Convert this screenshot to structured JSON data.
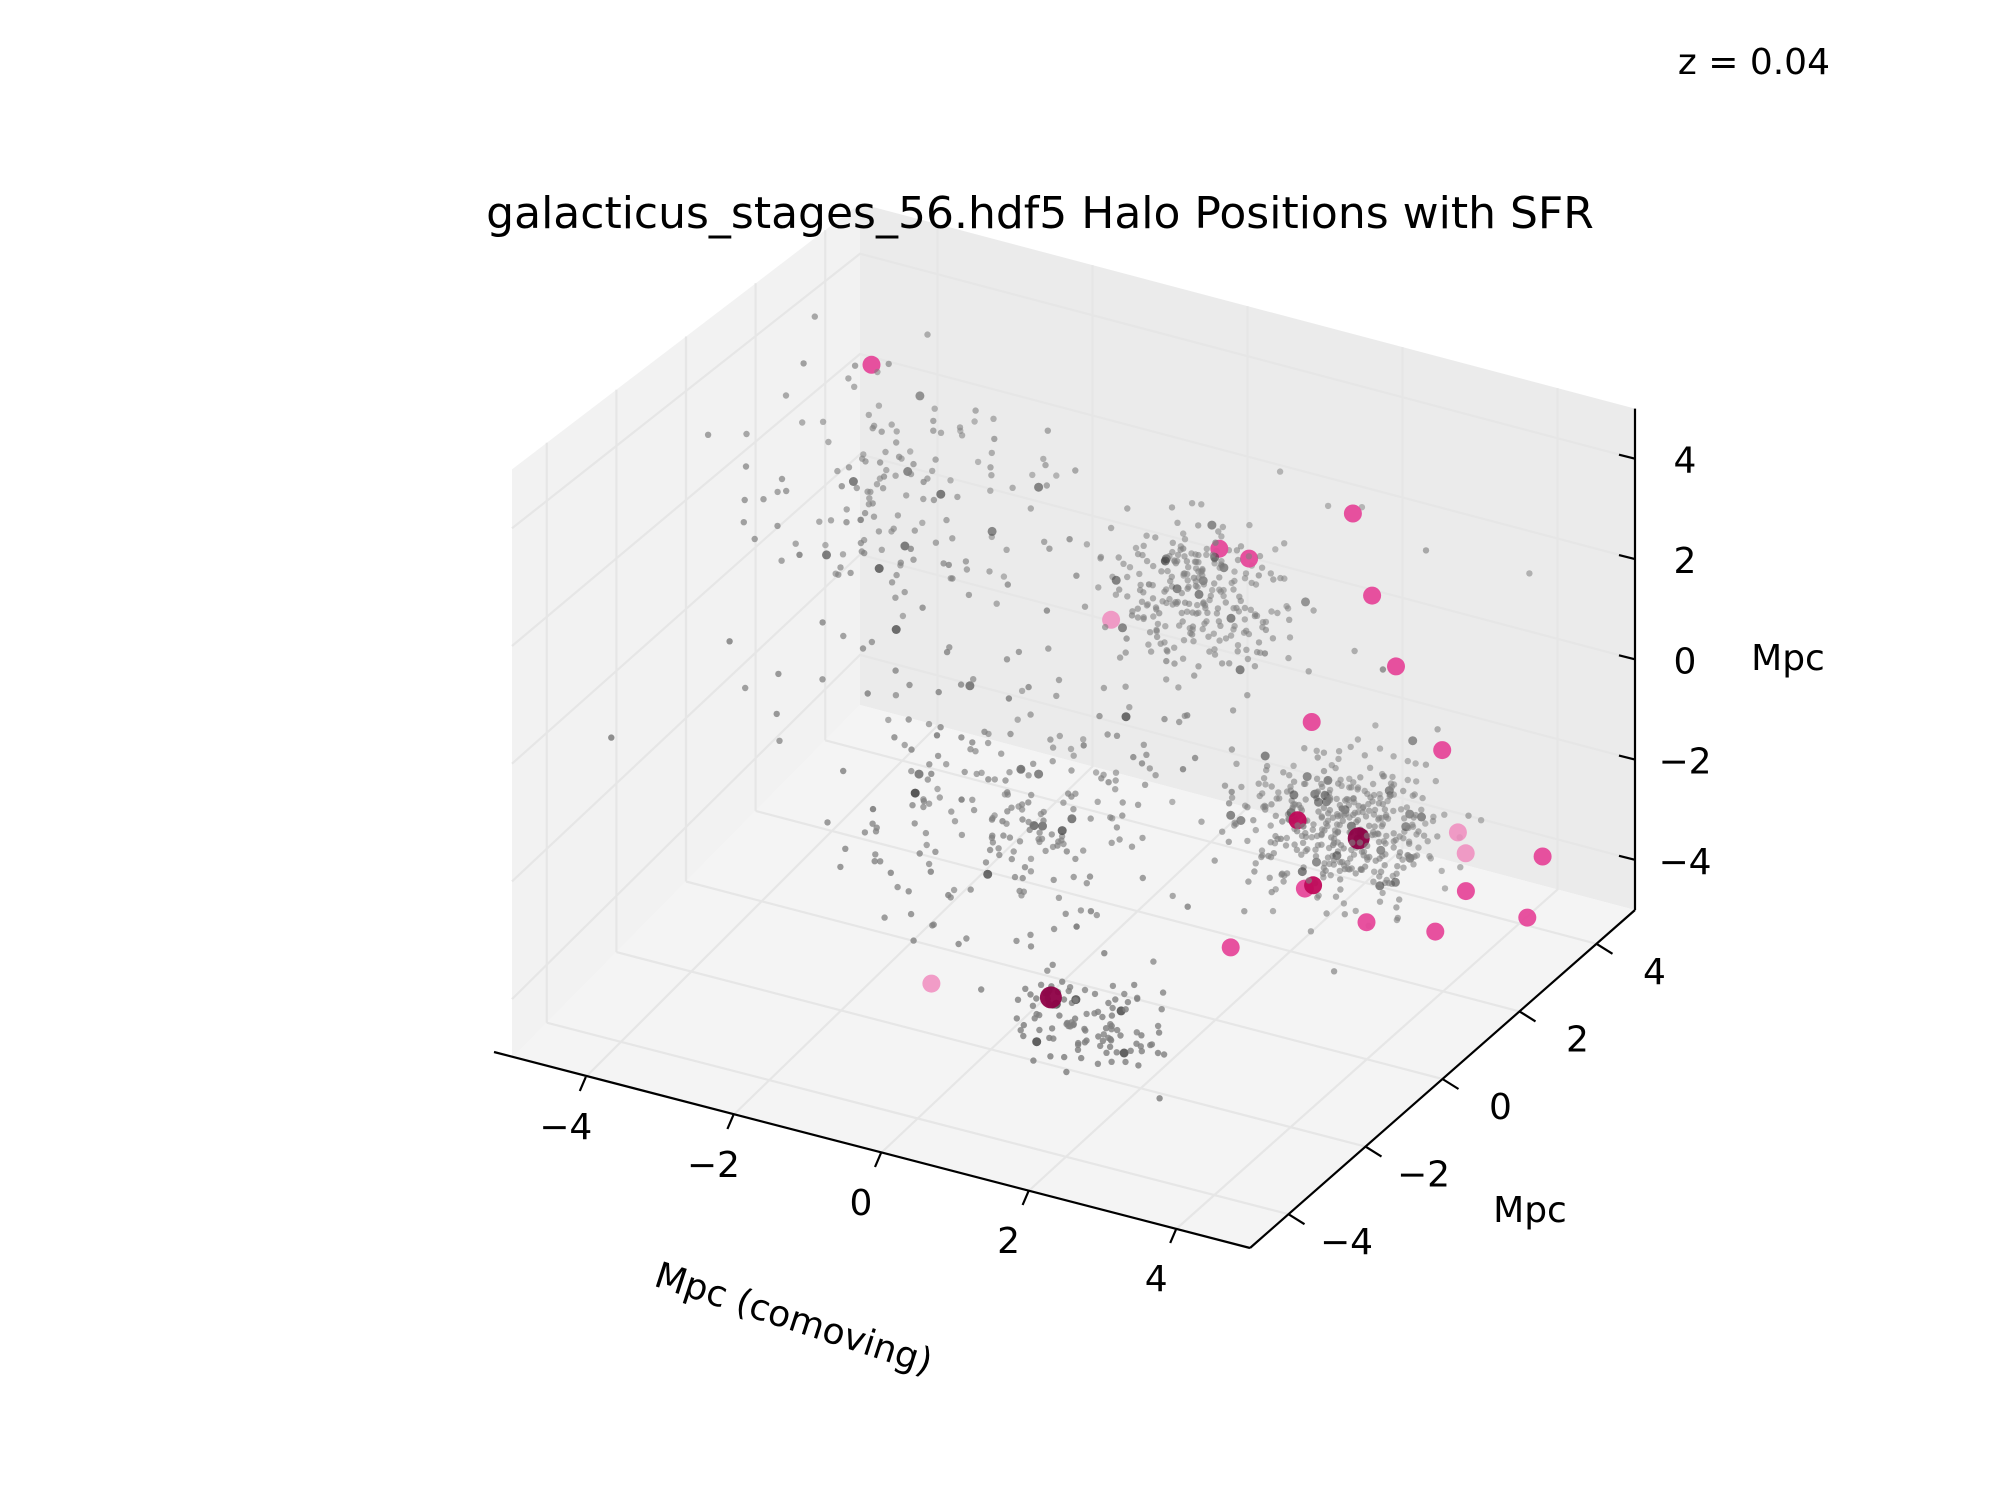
{
  "chart_data": {
    "type": "scatter",
    "title": "galacticus_stages_56.hdf5 Halo Positions with SFR",
    "annotation": "z = 0.04",
    "xlabel": "Mpc (comoving)",
    "ylabel": "Mpc",
    "zlabel": "Mpc",
    "xlim": [
      -5,
      5
    ],
    "ylim": [
      -5,
      5
    ],
    "zlim": [
      -5,
      5
    ],
    "xticks": [
      {
        "v": -4,
        "label": "−4"
      },
      {
        "v": -2,
        "label": "−2"
      },
      {
        "v": 0,
        "label": "0"
      },
      {
        "v": 2,
        "label": "2"
      },
      {
        "v": 4,
        "label": "4"
      }
    ],
    "yticks": [
      {
        "v": -4,
        "label": "−4"
      },
      {
        "v": -2,
        "label": "−2"
      },
      {
        "v": 0,
        "label": "0"
      },
      {
        "v": 2,
        "label": "2"
      },
      {
        "v": 4,
        "label": "4"
      }
    ],
    "zticks": [
      {
        "v": -4,
        "label": "−4"
      },
      {
        "v": -2,
        "label": "−2"
      },
      {
        "v": 0,
        "label": "0"
      },
      {
        "v": 2,
        "label": "2"
      },
      {
        "v": 4,
        "label": "4"
      }
    ],
    "grid": true,
    "colors": {
      "halo": "#808080",
      "halo_dark": "#404040",
      "sfr_light": "#f08cbe",
      "sfr_mid": "#e6489a",
      "sfr_high": "#c0085a",
      "sfr_max": "#8e0046",
      "pane_left": "#f2f2f2",
      "pane_back": "#ebebeb",
      "pane_floor": "#f4f4f4"
    },
    "notes_view": "3D perspective, elevation 30, azimuth -60",
    "clusters": [
      {
        "center": [
          2.2,
          3.0,
          -3.2
        ],
        "spread": [
          1.0,
          1.0,
          0.9
        ],
        "count": 420,
        "shade": "halo"
      },
      {
        "center": [
          0.2,
          3.2,
          0.3
        ],
        "spread": [
          0.9,
          0.8,
          1.2
        ],
        "count": 260,
        "shade": "halo"
      },
      {
        "center": [
          1.2,
          -1.8,
          -4.2
        ],
        "spread": [
          0.8,
          0.6,
          0.5
        ],
        "count": 110,
        "shade": "halo"
      },
      {
        "center": [
          -1.0,
          0.8,
          -3.0
        ],
        "spread": [
          1.6,
          1.6,
          1.3
        ],
        "count": 180,
        "shade": "halo"
      },
      {
        "center": [
          -3.2,
          2.0,
          1.5
        ],
        "spread": [
          1.3,
          2.0,
          2.0
        ],
        "count": 150,
        "shade": "halo"
      },
      {
        "center": [
          0.0,
          0.0,
          0.0
        ],
        "spread": [
          3.0,
          3.0,
          3.0
        ],
        "count": 110,
        "shade": "halo"
      }
    ],
    "sfr_points": [
      {
        "x": -4.4,
        "y": 4.0,
        "z": 2.6,
        "sfr": "mid"
      },
      {
        "x": -1.2,
        "y": 3.8,
        "z": -1.0,
        "sfr": "light"
      },
      {
        "x": 0.3,
        "y": 3.6,
        "z": 1.1,
        "sfr": "mid"
      },
      {
        "x": 0.4,
        "y": 4.2,
        "z": 0.6,
        "sfr": "mid"
      },
      {
        "x": 1.6,
        "y": 4.5,
        "z": 1.8,
        "sfr": "mid"
      },
      {
        "x": 2.4,
        "y": 4.0,
        "z": -0.6,
        "sfr": "mid"
      },
      {
        "x": 1.8,
        "y": 4.6,
        "z": 0.2,
        "sfr": "mid"
      },
      {
        "x": 1.5,
        "y": 3.6,
        "z": -1.8,
        "sfr": "mid"
      },
      {
        "x": 3.0,
        "y": 4.0,
        "z": -2.0,
        "sfr": "mid"
      },
      {
        "x": 3.6,
        "y": 3.4,
        "z": -3.4,
        "sfr": "light"
      },
      {
        "x": 1.9,
        "y": 2.4,
        "z": -2.8,
        "sfr": "high"
      },
      {
        "x": 2.6,
        "y": 2.6,
        "z": -3.0,
        "sfr": "max"
      },
      {
        "x": 2.2,
        "y": 2.2,
        "z": -3.8,
        "sfr": "high"
      },
      {
        "x": 3.8,
        "y": 3.0,
        "z": -3.8,
        "sfr": "mid"
      },
      {
        "x": 4.4,
        "y": 3.8,
        "z": -3.4,
        "sfr": "mid"
      },
      {
        "x": 3.6,
        "y": 2.6,
        "z": -4.4,
        "sfr": "mid"
      },
      {
        "x": 2.8,
        "y": 2.4,
        "z": -4.4,
        "sfr": "mid"
      },
      {
        "x": 1.8,
        "y": 2.8,
        "z": -4.4,
        "sfr": "mid"
      },
      {
        "x": 3.4,
        "y": 3.6,
        "z": -3.2,
        "sfr": "light"
      },
      {
        "x": 0.8,
        "y": -2.0,
        "z": -3.8,
        "sfr": "max"
      },
      {
        "x": -0.6,
        "y": -2.4,
        "z": -3.8,
        "sfr": "light"
      },
      {
        "x": 2.2,
        "y": 0.0,
        "z": -3.6,
        "sfr": "mid"
      },
      {
        "x": 4.6,
        "y": 3.0,
        "z": -4.0,
        "sfr": "mid"
      }
    ]
  }
}
